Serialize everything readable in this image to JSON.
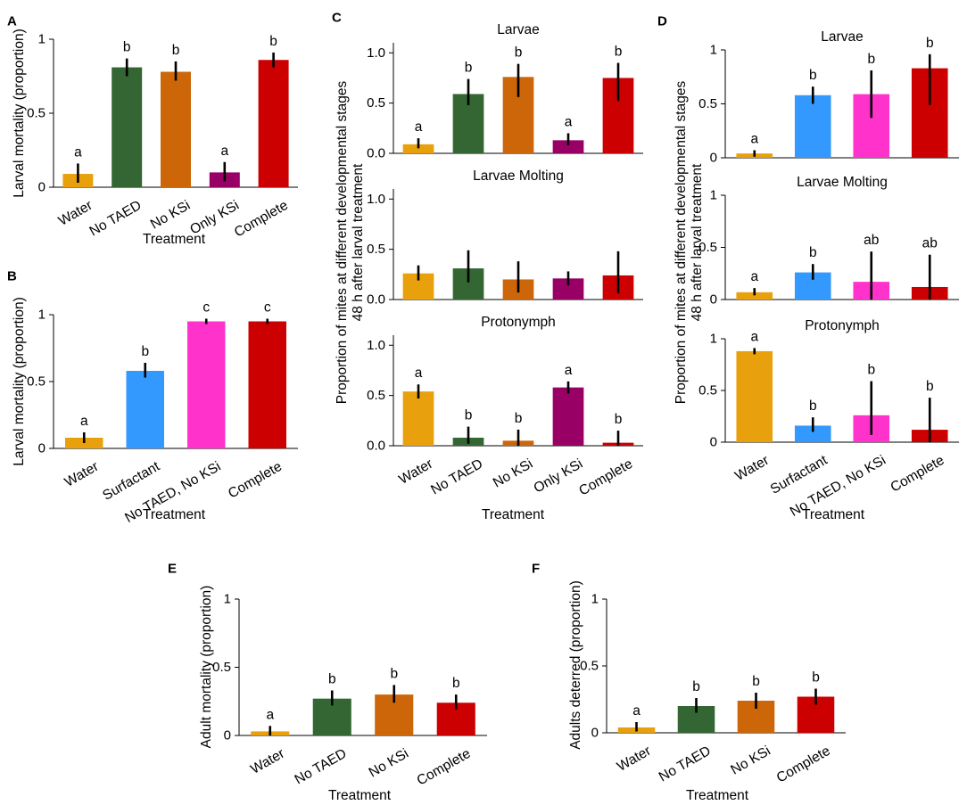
{
  "figure": {
    "x_title": "Treatment"
  },
  "colors": {
    "Water": "#E8A10C",
    "No TAED": "#336633",
    "No KSi": "#CC6608",
    "Only KSi": "#990066",
    "Complete": "#CC0000",
    "Surfactant": "#3399FF",
    "No TAED, No KSi": "#FF33CC",
    "error_bar": "#000000"
  },
  "chart_data": [
    {
      "id": "A",
      "type": "bar",
      "panel_label": "A",
      "title": "",
      "xlabel": "Treatment",
      "ylabel": "Larval mortality (proportion)",
      "ylim": [
        0,
        1
      ],
      "yticks": [
        0,
        0.5,
        1
      ],
      "ytick_labels": [
        "0",
        "0.5",
        "1"
      ],
      "categories": [
        "Water",
        "No TAED",
        "No KSi",
        "Only KSi",
        "Complete"
      ],
      "values": [
        0.09,
        0.81,
        0.78,
        0.1,
        0.86
      ],
      "err_low": [
        0.03,
        0.75,
        0.72,
        0.04,
        0.81
      ],
      "err_high": [
        0.16,
        0.87,
        0.85,
        0.17,
        0.91
      ],
      "sig": [
        "a",
        "b",
        "b",
        "a",
        "b"
      ]
    },
    {
      "id": "B",
      "type": "bar",
      "panel_label": "B",
      "title": "",
      "xlabel": "Treatment",
      "ylabel": "Larval mortality (proportion)",
      "ylim": [
        0,
        1
      ],
      "yticks": [
        0,
        0.5,
        1
      ],
      "ytick_labels": [
        "0",
        "0.5",
        "1"
      ],
      "categories": [
        "Water",
        "Surfactant",
        "No TAED, No KSi",
        "Complete"
      ],
      "values": [
        0.08,
        0.58,
        0.95,
        0.95
      ],
      "err_low": [
        0.04,
        0.53,
        0.93,
        0.93
      ],
      "err_high": [
        0.12,
        0.64,
        0.97,
        0.97
      ],
      "sig": [
        "a",
        "b",
        "c",
        "c"
      ]
    },
    {
      "id": "C1",
      "type": "bar",
      "panel_label": "C",
      "title": "Larvae",
      "xlabel": "",
      "ylabel": "",
      "ylim": [
        0,
        1.1
      ],
      "yticks": [
        0,
        0.5,
        1
      ],
      "ytick_labels": [
        "0.0",
        "0.5",
        "1.0"
      ],
      "categories": [
        "Water",
        "No TAED",
        "No KSi",
        "Only KSi",
        "Complete"
      ],
      "values": [
        0.09,
        0.59,
        0.76,
        0.13,
        0.75
      ],
      "err_low": [
        0.05,
        0.48,
        0.56,
        0.08,
        0.52
      ],
      "err_high": [
        0.15,
        0.74,
        0.89,
        0.2,
        0.9
      ],
      "sig": [
        "a",
        "b",
        "b",
        "a",
        "b"
      ]
    },
    {
      "id": "C2",
      "type": "bar",
      "panel_label": "",
      "title": "Larvae Molting",
      "xlabel": "",
      "ylabel": "",
      "ylim": [
        0,
        1.1
      ],
      "yticks": [
        0,
        0.5,
        1
      ],
      "ytick_labels": [
        "0.0",
        "0.5",
        "1.0"
      ],
      "categories": [
        "Water",
        "No TAED",
        "No KSi",
        "Only KSi",
        "Complete"
      ],
      "values": [
        0.26,
        0.31,
        0.2,
        0.21,
        0.24
      ],
      "err_low": [
        0.19,
        0.17,
        0.07,
        0.14,
        0.06
      ],
      "err_high": [
        0.34,
        0.49,
        0.38,
        0.28,
        0.48
      ],
      "sig": [
        "",
        "",
        "",
        "",
        ""
      ]
    },
    {
      "id": "C3",
      "type": "bar",
      "panel_label": "",
      "title": "Protonymph",
      "xlabel": "Treatment",
      "ylabel": "",
      "ylim": [
        0,
        1.1
      ],
      "yticks": [
        0,
        0.5,
        1
      ],
      "ytick_labels": [
        "0.0",
        "0.5",
        "1.0"
      ],
      "categories": [
        "Water",
        "No TAED",
        "No KSi",
        "Only KSi",
        "Complete"
      ],
      "values": [
        0.54,
        0.08,
        0.05,
        0.58,
        0.03
      ],
      "err_low": [
        0.47,
        0.02,
        0.0,
        0.52,
        0.0
      ],
      "err_high": [
        0.61,
        0.19,
        0.16,
        0.64,
        0.15
      ],
      "sig": [
        "a",
        "b",
        "b",
        "a",
        "b"
      ]
    },
    {
      "id": "D1",
      "type": "bar",
      "panel_label": "D",
      "title": "Larvae",
      "xlabel": "",
      "ylabel": "",
      "ylim": [
        0,
        1
      ],
      "yticks": [
        0,
        0.5,
        1
      ],
      "ytick_labels": [
        "0",
        "0.5",
        "1"
      ],
      "categories": [
        "Water",
        "Surfactant",
        "No TAED, No KSi",
        "Complete"
      ],
      "values": [
        0.04,
        0.58,
        0.59,
        0.83
      ],
      "err_low": [
        0.01,
        0.5,
        0.37,
        0.49
      ],
      "err_high": [
        0.07,
        0.66,
        0.81,
        0.96
      ],
      "sig": [
        "a",
        "b",
        "b",
        "b"
      ]
    },
    {
      "id": "D2",
      "type": "bar",
      "panel_label": "",
      "title": "Larvae Molting",
      "xlabel": "",
      "ylabel": "",
      "ylim": [
        0,
        1
      ],
      "yticks": [
        0,
        0.5,
        1
      ],
      "ytick_labels": [
        "0",
        "0.5",
        "1"
      ],
      "categories": [
        "Water",
        "Surfactant",
        "No TAED, No KSi",
        "Complete"
      ],
      "values": [
        0.07,
        0.26,
        0.17,
        0.12
      ],
      "err_low": [
        0.04,
        0.19,
        0.0,
        0.0
      ],
      "err_high": [
        0.11,
        0.34,
        0.46,
        0.43
      ],
      "sig": [
        "a",
        "b",
        "ab",
        "ab"
      ]
    },
    {
      "id": "D3",
      "type": "bar",
      "panel_label": "",
      "title": "Protonymph",
      "xlabel": "Treatment",
      "ylabel": "",
      "ylim": [
        0,
        1
      ],
      "yticks": [
        0,
        0.5,
        1
      ],
      "ytick_labels": [
        "0",
        "0.5",
        "1"
      ],
      "categories": [
        "Water",
        "Surfactant",
        "No TAED, No KSi",
        "Complete"
      ],
      "values": [
        0.88,
        0.16,
        0.26,
        0.12
      ],
      "err_low": [
        0.85,
        0.1,
        0.07,
        0.0
      ],
      "err_high": [
        0.91,
        0.24,
        0.59,
        0.43
      ],
      "sig": [
        "a",
        "b",
        "b",
        "b"
      ]
    },
    {
      "id": "E",
      "type": "bar",
      "panel_label": "E",
      "title": "",
      "xlabel": "Treatment",
      "ylabel": "Adult mortality (proportion)",
      "ylim": [
        0,
        1
      ],
      "yticks": [
        0,
        0.5,
        1
      ],
      "ytick_labels": [
        "0",
        "0.5",
        "1"
      ],
      "categories": [
        "Water",
        "No TAED",
        "No KSi",
        "Complete"
      ],
      "values": [
        0.03,
        0.27,
        0.3,
        0.24
      ],
      "err_low": [
        0.0,
        0.22,
        0.24,
        0.19
      ],
      "err_high": [
        0.07,
        0.33,
        0.37,
        0.3
      ],
      "sig": [
        "a",
        "b",
        "b",
        "b"
      ]
    },
    {
      "id": "F",
      "type": "bar",
      "panel_label": "F",
      "title": "",
      "xlabel": "Treatment",
      "ylabel": "Adults deterred (proportion)",
      "ylim": [
        0,
        1
      ],
      "yticks": [
        0,
        0.5,
        1
      ],
      "ytick_labels": [
        "0",
        "0.5",
        "1"
      ],
      "categories": [
        "Water",
        "No TAED",
        "No KSi",
        "Complete"
      ],
      "values": [
        0.04,
        0.2,
        0.24,
        0.27
      ],
      "err_low": [
        0.01,
        0.15,
        0.18,
        0.21
      ],
      "err_high": [
        0.08,
        0.26,
        0.3,
        0.33
      ],
      "sig": [
        "a",
        "b",
        "b",
        "b"
      ]
    }
  ],
  "shared_labels": [
    {
      "id": "C",
      "text": "Proportion of mites at different developmental stages\n48 h after larval treatment"
    },
    {
      "id": "D",
      "text": "Proportion of mites at different developmental stages\n48 h after larval treatment"
    }
  ]
}
